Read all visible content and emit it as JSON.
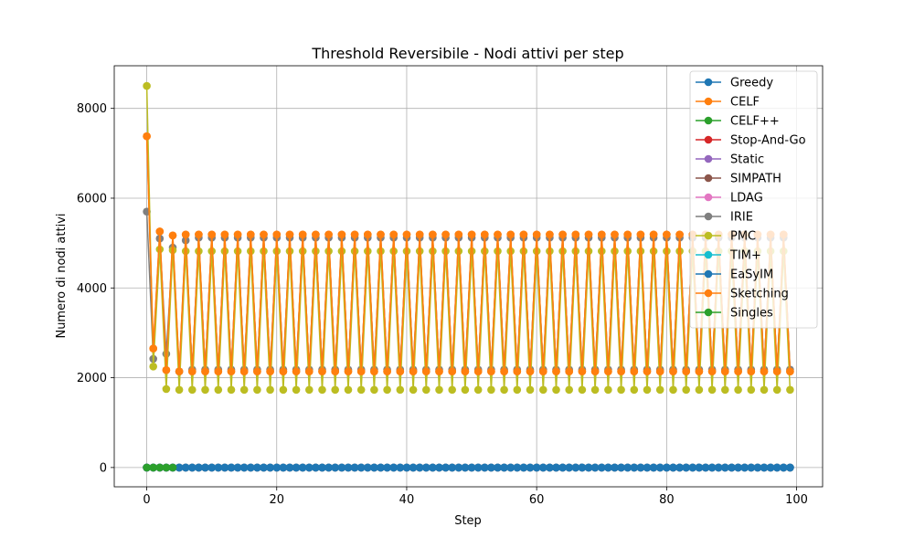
{
  "chart_data": {
    "type": "line",
    "title": "Threshold Reversibile - Nodi attivi per step",
    "xlabel": "Step",
    "ylabel": "Numero di nodi attivi",
    "xlim": [
      -5,
      104
    ],
    "ylim": [
      -430,
      8950
    ],
    "xticks": [
      "0",
      "20",
      "40",
      "60",
      "80",
      "100"
    ],
    "yticks": [
      "0",
      "2000",
      "4000",
      "6000",
      "8000"
    ],
    "grid": true,
    "legend_position": "top-right",
    "series": [
      {
        "name": "Greedy",
        "color": "#1f77b4",
        "start": [
          0
        ],
        "even": 0,
        "odd": 0
      },
      {
        "name": "CELF",
        "color": "#ff7f0e",
        "start": [
          7380,
          2650,
          5260,
          2170,
          5170
        ],
        "even": 5190,
        "odd": 2140
      },
      {
        "name": "CELF++",
        "color": "#2ca02c",
        "start": [
          0
        ],
        "even": 0,
        "odd": 0
      },
      {
        "name": "Stop-And-Go",
        "color": "#d62728",
        "start": [
          0
        ],
        "even": 0,
        "odd": 0
      },
      {
        "name": "Static",
        "color": "#9467bd",
        "start": [
          0
        ],
        "even": 0,
        "odd": 0
      },
      {
        "name": "SIMPATH",
        "color": "#8c564b",
        "start": [
          0
        ],
        "even": 0,
        "odd": 0
      },
      {
        "name": "LDAG",
        "color": "#e377c2",
        "start": [
          0
        ],
        "even": 0,
        "odd": 0
      },
      {
        "name": "IRIE",
        "color": "#7f7f7f",
        "start": [
          5700,
          2420,
          5100,
          2530,
          4900,
          2140,
          5060
        ],
        "even": 5120,
        "odd": 2180
      },
      {
        "name": "PMC",
        "color": "#bcbd22",
        "start": [
          8500,
          2250,
          4860,
          1750,
          4840
        ],
        "even": 4820,
        "odd": 1730
      },
      {
        "name": "TIM+",
        "color": "#17becf",
        "start": [
          0
        ],
        "even": 0,
        "odd": 0
      },
      {
        "name": "EaSyIM",
        "color": "#1f77b4",
        "start": [
          0
        ],
        "even": 0,
        "odd": 0
      },
      {
        "name": "Sketching",
        "color": "#ff7f0e",
        "start": [
          7380,
          2650,
          5260,
          2170,
          5170
        ],
        "even": 5190,
        "odd": 2140
      },
      {
        "name": "Singles",
        "color": "#2ca02c",
        "start": [
          0,
          0,
          0,
          0,
          0
        ],
        "even": 0,
        "odd": 0,
        "count": 5
      }
    ]
  }
}
